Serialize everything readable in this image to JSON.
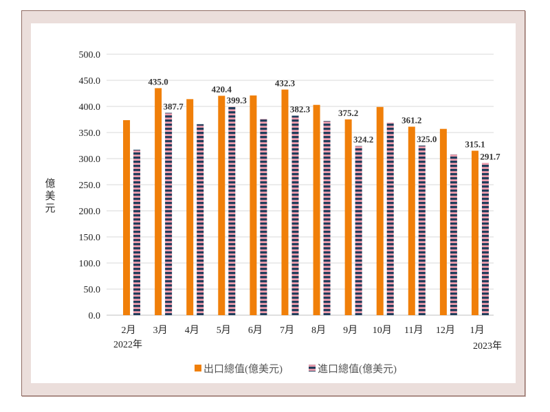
{
  "chart_data": {
    "type": "bar",
    "title": "",
    "xlabel": "",
    "ylabel": "億美元",
    "ylim": [
      0,
      500
    ],
    "yticks": [
      "0.0",
      "50.0",
      "100.0",
      "150.0",
      "200.0",
      "250.0",
      "300.0",
      "350.0",
      "400.0",
      "450.0",
      "500.0"
    ],
    "grid": true,
    "legend_position": "bottom",
    "categories": [
      "2月",
      "3月",
      "4月",
      "5月",
      "6月",
      "7月",
      "8月",
      "9月",
      "10月",
      "11月",
      "12月",
      "1月"
    ],
    "year_labels": {
      "start": "2022年",
      "end": "2023年"
    },
    "series": [
      {
        "name": "出口總值(億美元)",
        "color": "#f07f09",
        "pattern": "solid",
        "values": [
          373.7,
          435.0,
          414.0,
          420.4,
          421.0,
          432.3,
          403.0,
          375.2,
          399.0,
          361.2,
          357.0,
          315.1
        ],
        "labels": [
          "",
          "435.0",
          "",
          "420.4",
          "",
          "432.3",
          "",
          "375.2",
          "",
          "361.2",
          "",
          "315.1"
        ]
      },
      {
        "name": "進口總值(億美元)",
        "color": "#213d5b",
        "stripe_color": "#f0a0b0",
        "pattern": "horizontal-stripes",
        "values": [
          317.0,
          387.7,
          366.0,
          399.3,
          376.0,
          382.3,
          372.0,
          324.2,
          369.0,
          325.0,
          308.0,
          291.7
        ],
        "labels": [
          "",
          "387.7",
          "",
          "399.3",
          "",
          "382.3",
          "",
          "324.2",
          "",
          "325.0",
          "",
          "291.7"
        ]
      }
    ]
  },
  "legend": {
    "export_label": "出口總值(億美元)",
    "import_label": "進口總值(億美元)"
  },
  "colors": {
    "export": "#f07f09",
    "import_dark": "#213d5b",
    "import_light": "#f0a0b0",
    "frame_bg": "#ebdedb",
    "frame_border": "#8f6b63",
    "grid": "#d9d9d9"
  }
}
